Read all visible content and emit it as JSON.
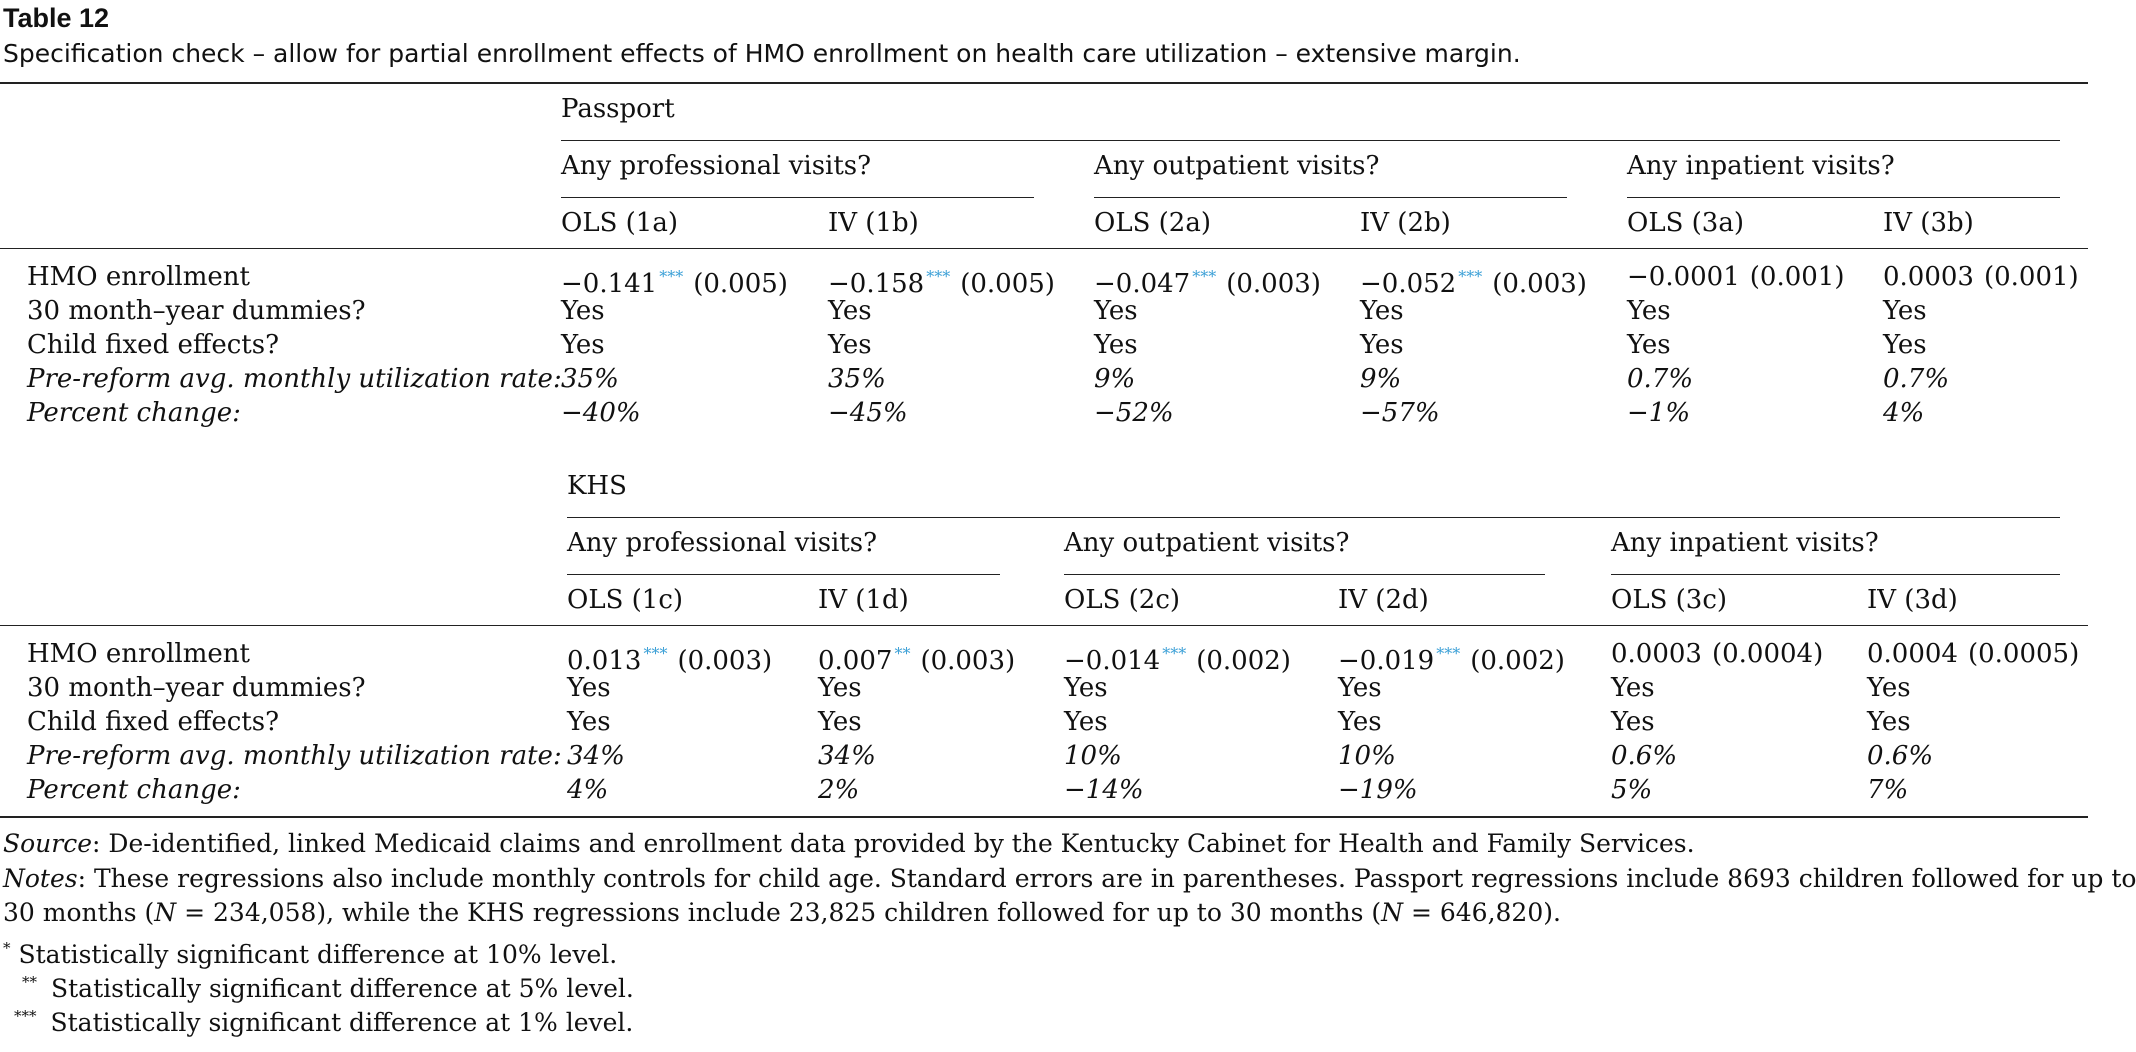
{
  "title": "Table 12",
  "caption": "Specification check – allow for partial enrollment effects of HMO enrollment on health care utilization – extensive margin.",
  "panels": [
    {
      "group": "Passport",
      "outcomes": [
        "Any professional visits?",
        "Any outpatient visits?",
        "Any inpatient visits?"
      ],
      "columns": [
        "OLS (1a)",
        "IV (1b)",
        "OLS (2a)",
        "IV (2b)",
        "OLS (3a)",
        "IV (3b)"
      ],
      "row_labels": [
        "HMO enrollment",
        "30 month–year dummies?",
        "Child fixed effects?",
        "Pre-reform avg. monthly utilization rate:",
        "Percent change:"
      ],
      "hmo_coef": [
        "−0.141",
        "−0.158",
        "−0.047",
        "−0.052",
        "−0.0001",
        "0.0003"
      ],
      "hmo_stars": [
        "***",
        "***",
        "***",
        "***",
        "",
        ""
      ],
      "hmo_se": [
        "(0.005)",
        "(0.005)",
        "(0.003)",
        "(0.003)",
        "(0.001)",
        "(0.001)"
      ],
      "dummies": [
        "Yes",
        "Yes",
        "Yes",
        "Yes",
        "Yes",
        "Yes"
      ],
      "fixed_effects": [
        "Yes",
        "Yes",
        "Yes",
        "Yes",
        "Yes",
        "Yes"
      ],
      "pre_reform_rate": [
        "35%",
        "35%",
        "9%",
        "9%",
        "0.7%",
        "0.7%"
      ],
      "percent_change": [
        "−40%",
        "−45%",
        "−52%",
        "−57%",
        "−1%",
        "4%"
      ]
    },
    {
      "group": "KHS",
      "outcomes": [
        "Any professional visits?",
        "Any outpatient visits?",
        "Any inpatient visits?"
      ],
      "columns": [
        "OLS (1c)",
        "IV (1d)",
        "OLS (2c)",
        "IV (2d)",
        "OLS (3c)",
        "IV (3d)"
      ],
      "row_labels": [
        "HMO enrollment",
        "30 month–year dummies?",
        "Child fixed effects?",
        "Pre-reform avg. monthly utilization rate:",
        "Percent change:"
      ],
      "hmo_coef": [
        "0.013",
        "0.007",
        "−0.014",
        "−0.019",
        "0.0003",
        "0.0004"
      ],
      "hmo_stars": [
        "***",
        "**",
        "***",
        "***",
        "",
        ""
      ],
      "hmo_se": [
        "(0.003)",
        "(0.003)",
        "(0.002)",
        "(0.002)",
        "(0.0004)",
        "(0.0005)"
      ],
      "dummies": [
        "Yes",
        "Yes",
        "Yes",
        "Yes",
        "Yes",
        "Yes"
      ],
      "fixed_effects": [
        "Yes",
        "Yes",
        "Yes",
        "Yes",
        "Yes",
        "Yes"
      ],
      "pre_reform_rate": [
        "34%",
        "34%",
        "10%",
        "10%",
        "0.6%",
        "0.6%"
      ],
      "percent_change": [
        "4%",
        "2%",
        "−14%",
        "−19%",
        "5%",
        "7%"
      ]
    }
  ],
  "footnotes": {
    "source_label": "Source",
    "source_text": ": De-identified, linked Medicaid claims and enrollment data provided by the Kentucky Cabinet for Health and Family Services.",
    "notes_label": "Notes",
    "notes_text_1": ": These regressions also include monthly controls for child age. Standard errors are in parentheses. Passport regressions include 8693 children followed for up to",
    "notes_text_2a": "30 months (",
    "notes_n1": "N",
    "notes_text_2b": " = 234,058), while the KHS regressions include 23,825 children followed for up to 30 months (",
    "notes_n2": "N",
    "notes_text_2c": " = 646,820).",
    "sig": [
      {
        "mark": "*",
        "text": " Statistically significant difference at 10% level."
      },
      {
        "mark": "**",
        "text": "Statistically significant difference at 5% level."
      },
      {
        "mark": "***",
        "text": "Statistically significant difference at 1% level."
      }
    ]
  }
}
